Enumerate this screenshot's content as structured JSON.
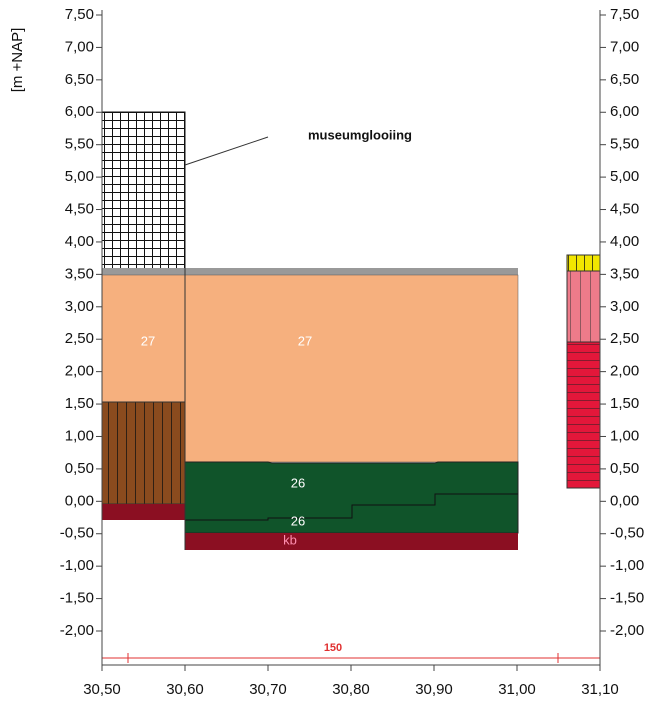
{
  "y_axis_label": "[m +NAP]",
  "y_tick_labels": [
    "7,50",
    "7,00",
    "6,50",
    "6,00",
    "5,50",
    "5,00",
    "4,50",
    "4,00",
    "3,50",
    "3,00",
    "2,50",
    "2,00",
    "1,50",
    "1,00",
    "0,50",
    "0,00",
    "-0,50",
    "-1,00",
    "-1,50",
    "-2,00"
  ],
  "x_tick_labels": [
    "30,50",
    "30,60",
    "30,70",
    "30,80",
    "30,90",
    "31,00",
    "31,10"
  ],
  "annotations": {
    "museum": "museumglooiing",
    "layer_27_left": "27",
    "layer_27_mid": "27",
    "layer_26_upper": "26",
    "layer_26_lower": "26",
    "layer_kb": "kb",
    "dimension": "150"
  }
}
